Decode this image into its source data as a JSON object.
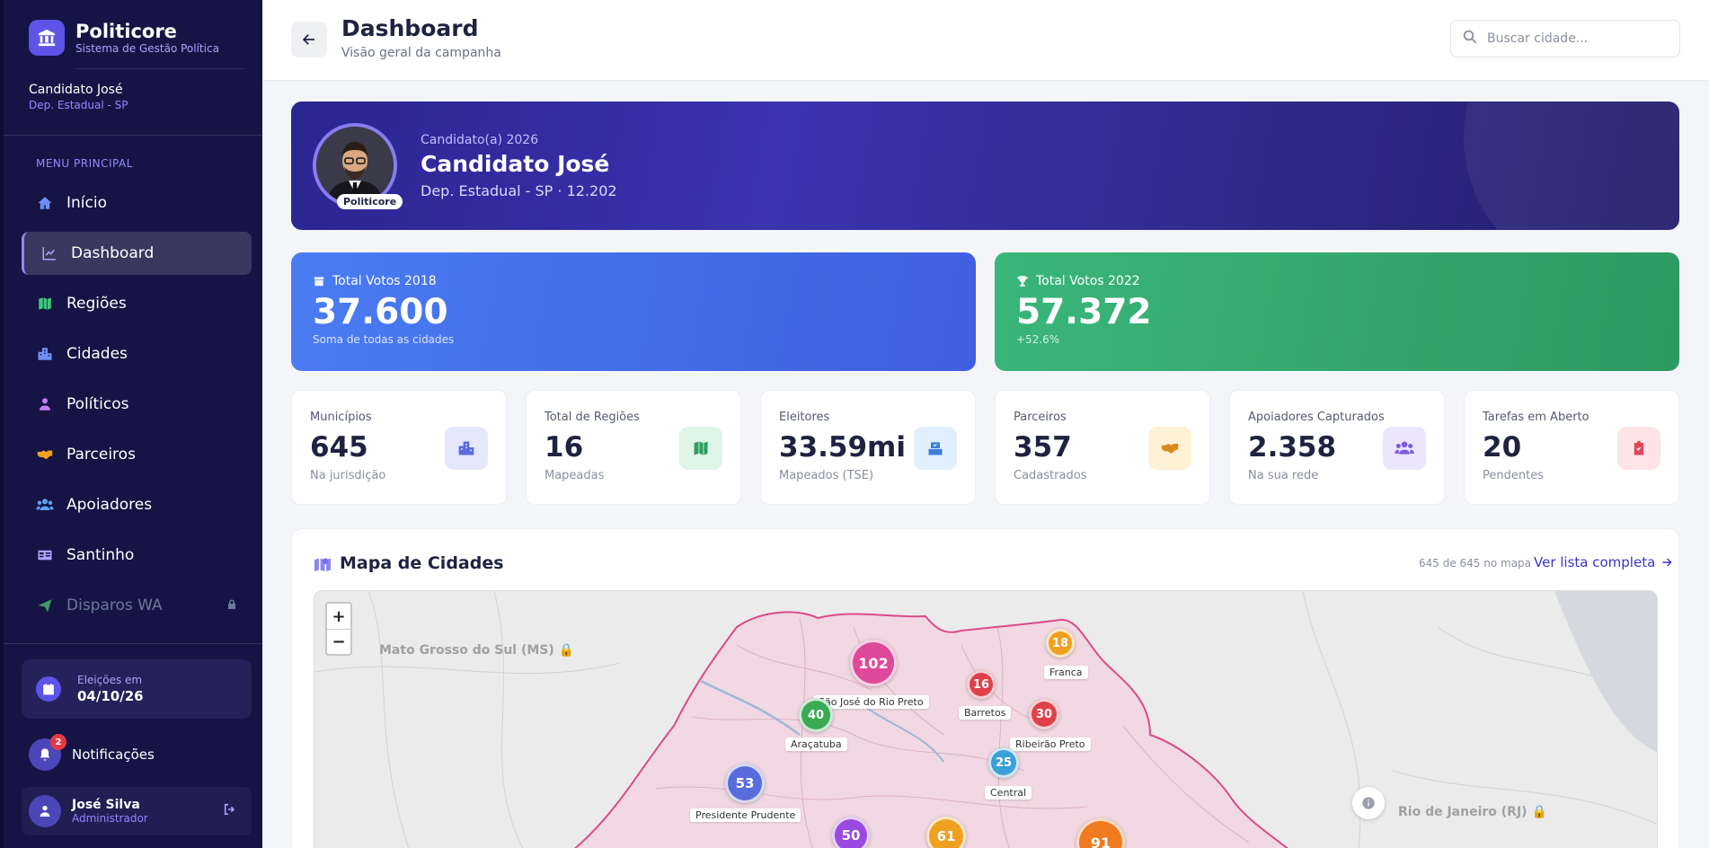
{
  "brand": {
    "name": "Politicore",
    "subtitle": "Sistema de Gestão Política"
  },
  "candidate": {
    "name": "Candidato José",
    "role": "Dep. Estadual - SP"
  },
  "menu": {
    "title": "MENU PRINCIPAL",
    "items": [
      {
        "label": "Início",
        "icon": "home-icon"
      },
      {
        "label": "Dashboard",
        "icon": "chart-line-icon",
        "active": true
      },
      {
        "label": "Regiões",
        "icon": "map-icon"
      },
      {
        "label": "Cidades",
        "icon": "city-icon"
      },
      {
        "label": "Políticos",
        "icon": "person-icon"
      },
      {
        "label": "Parceiros",
        "icon": "handshake-icon"
      },
      {
        "label": "Apoiadores",
        "icon": "users-icon"
      },
      {
        "label": "Santinho",
        "icon": "id-card-icon"
      },
      {
        "label": "Disparos WA",
        "icon": "send-icon",
        "locked": true
      }
    ]
  },
  "election": {
    "label": "Eleições em",
    "date": "04/10/26"
  },
  "notifications": {
    "label": "Notificações",
    "count": "2"
  },
  "user": {
    "name": "José Silva",
    "role": "Administrador"
  },
  "header": {
    "title": "Dashboard",
    "subtitle": "Visão geral da campanha",
    "search_placeholder": "Buscar cidade..."
  },
  "hero": {
    "pre": "Candidato(a) 2026",
    "name": "Candidato José",
    "role": "Dep. Estadual - SP · 12.202",
    "badge": "Politicore"
  },
  "votes": [
    {
      "label": "Total Votos 2018",
      "value": "37.600",
      "note": "Soma de todas as cidades",
      "color": "#4a7cf2"
    },
    {
      "label": "Total Votos 2022",
      "value": "57.372",
      "note": "+52.6%",
      "color": "#3ab67a"
    }
  ],
  "stats": [
    {
      "label": "Municípios",
      "value": "645",
      "note": "Na jurisdição",
      "icon": "building-icon",
      "bg": "#e5e8fb",
      "fg": "#5b6be0"
    },
    {
      "label": "Total de Regiões",
      "value": "16",
      "note": "Mapeadas",
      "icon": "map-icon",
      "bg": "#dff5e8",
      "fg": "#2f9e5e"
    },
    {
      "label": "Eleitores",
      "value": "33.59mi",
      "note": "Mapeados (TSE)",
      "icon": "vote-box-icon",
      "bg": "#e1efff",
      "fg": "#3d7fd9"
    },
    {
      "label": "Parceiros",
      "value": "357",
      "note": "Cadastrados",
      "icon": "handshake-icon",
      "bg": "#fdf1d6",
      "fg": "#d98a1c"
    },
    {
      "label": "Apoiadores Capturados",
      "value": "2.358",
      "note": "Na sua rede",
      "icon": "users-icon",
      "bg": "#ece6fd",
      "fg": "#7c5be0"
    },
    {
      "label": "Tarefas em Aberto",
      "value": "20",
      "note": "Pendentes",
      "icon": "clipboard-icon",
      "bg": "#fde4e6",
      "fg": "#e0485a"
    }
  ],
  "map": {
    "title": "Mapa de Cidades",
    "count": "645 de 645 no mapa",
    "link": "Ver lista completa",
    "zoom_in": "+",
    "zoom_out": "−",
    "labels": [
      "Mato Grosso do Sul (MS)",
      "Rio de Janeiro (RJ)"
    ],
    "clusters": [
      {
        "value": "102",
        "city": "São José do Rio Preto",
        "color": "#e0489a"
      },
      {
        "value": "18",
        "city": "Franca",
        "color": "#f0a020"
      },
      {
        "value": "16",
        "city": "Barretos",
        "color": "#e0404a"
      },
      {
        "value": "40",
        "city": "Araçatuba",
        "color": "#3aaa55"
      },
      {
        "value": "30",
        "city": "Ribeirão Preto",
        "color": "#e0404a"
      },
      {
        "value": "25",
        "city": "Central",
        "color": "#3aa0d8"
      },
      {
        "value": "53",
        "city": "Presidente Prudente",
        "color": "#5a6cdc"
      },
      {
        "value": "50",
        "city": "",
        "color": "#9a4ae0"
      },
      {
        "value": "61",
        "city": "",
        "color": "#f0a020"
      },
      {
        "value": "91",
        "city": "",
        "color": "#f07a20"
      }
    ]
  }
}
